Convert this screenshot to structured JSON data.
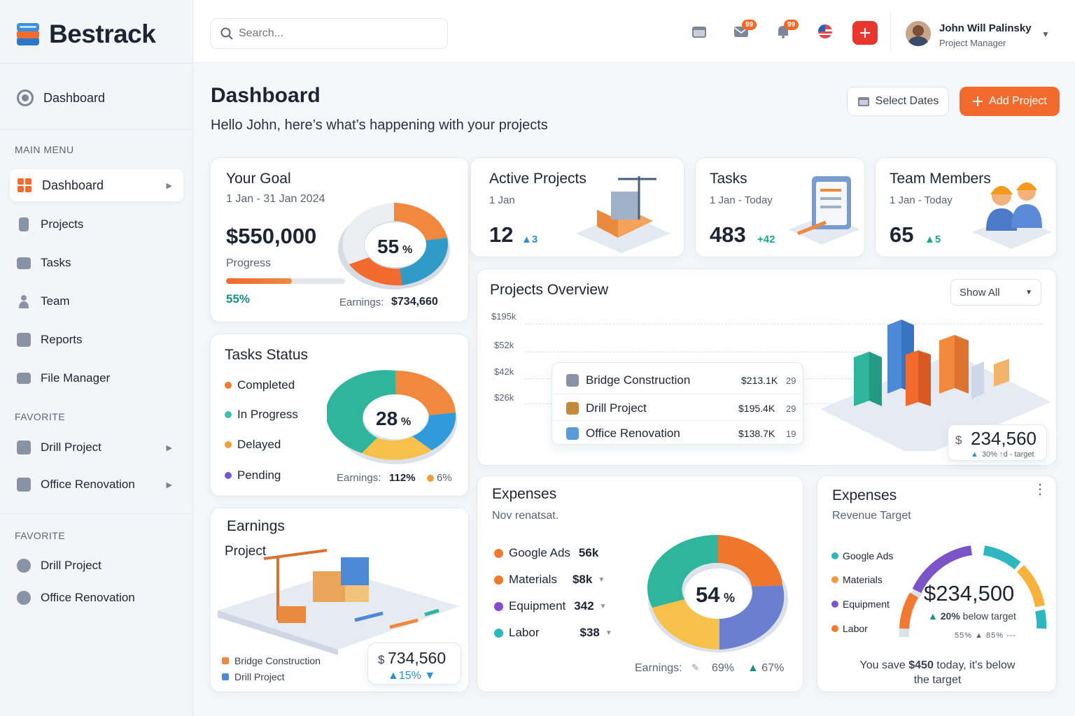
{
  "brand": {
    "name": "Bestrack",
    "accent": "#f26a2e"
  },
  "sidebar": {
    "top_item": "Dashboard",
    "main_menu_label": "MAIN MENU",
    "items": [
      {
        "label": "Dashboard",
        "icon": "grid-icon"
      },
      {
        "label": "Projects",
        "icon": "projects-icon"
      },
      {
        "label": "Tasks",
        "icon": "tasks-icon"
      },
      {
        "label": "Team",
        "icon": "team-icon"
      },
      {
        "label": "Reports",
        "icon": "reports-icon"
      },
      {
        "label": "File Manager",
        "icon": "folder-icon"
      }
    ],
    "favorite_label": "FAVORITE",
    "favorites": [
      {
        "label": "Drill Project"
      },
      {
        "label": "Office Renovation"
      }
    ],
    "favorite_label_2": "FAVORITE",
    "favorites_2": [
      {
        "label": "Drill Project"
      },
      {
        "label": "Office Renovation"
      }
    ]
  },
  "topbar": {
    "search_placeholder": "Search...",
    "mail_badge": "99",
    "bell_badge": "99",
    "user_name": "John Will Palinsky",
    "user_role": "Project Manager"
  },
  "header": {
    "title": "Dashboard",
    "subtitle": "Hello John, here’s what’s happening with your projects",
    "select_dates": "Select Dates",
    "add_project": "Add Project"
  },
  "goal": {
    "title": "Your Goal",
    "range": "1 Jan - 31 Jan 2024",
    "amount": "$550,000",
    "progress_label": "Progress",
    "progress_pct": "55%",
    "progress_value": 0.55,
    "earnings_label": "Earnings:",
    "earnings_value": "$734,660",
    "donut_pct": "55",
    "pct_sign": "%"
  },
  "stats": [
    {
      "title": "Active Projects",
      "range": "1 Jan",
      "value": "12",
      "delta": "3",
      "color": "#2f8fd0"
    },
    {
      "title": "Tasks",
      "range": "1 Jan - Today",
      "value": "483",
      "delta": "+42",
      "color": "#1aa884"
    },
    {
      "title": "Team Members",
      "range": "1 Jan - Today",
      "value": "65",
      "delta": "5",
      "color": "#1aa884"
    }
  ],
  "tasks_status": {
    "title": "Tasks Status",
    "legend": [
      {
        "label": "Completed",
        "color": "#f07a30"
      },
      {
        "label": "In Progress",
        "color": "#3fbfb0"
      },
      {
        "label": "Delayed",
        "color": "#f39a3c"
      },
      {
        "label": "Pending",
        "color": "#7b55c8"
      }
    ],
    "center": "28",
    "pct_sign": "%",
    "earnings_label": "Earnings:",
    "earnings_value": "112%",
    "extra": "6%"
  },
  "overview": {
    "title": "Projects Overview",
    "filter": "Show All",
    "y_ticks": [
      "$195k",
      "$52k",
      "$42k",
      "$26k"
    ],
    "rows": [
      {
        "name": "Bridge Construction",
        "amount": "$213.1K",
        "count": "29"
      },
      {
        "name": "Drill Project",
        "amount": "$195.4K",
        "count": "29"
      },
      {
        "name": "Office Renovation",
        "amount": "$138.7K",
        "count": "19"
      }
    ],
    "total_currency": "$",
    "total": "234,560",
    "total_sub": "30% ↑d - target"
  },
  "earnings": {
    "title": "Earnings",
    "subtitle": "Project",
    "rows": [
      {
        "name": "Bridge Construction"
      },
      {
        "name": "Drill Project"
      }
    ],
    "amount_currency": "$",
    "amount": "734,560",
    "delta": "15%"
  },
  "expenses": {
    "title": "Expenses",
    "subtitle": "Nov renatsat.",
    "rows": [
      {
        "label": "Google Ads",
        "value": "56k",
        "color": "#f07a30"
      },
      {
        "label": "Materials",
        "value": "$8k",
        "color": "#f0762c"
      },
      {
        "label": "Equipment",
        "value": "342",
        "color": "#8a4ad0"
      },
      {
        "label": "Labor",
        "value": "$38",
        "color": "#2fb7c0"
      }
    ],
    "center": "54",
    "pct_sign": "%",
    "earnings_label": "Earnings:",
    "e1": "69%",
    "e2": "67%"
  },
  "expenses2": {
    "title": "Expenses",
    "subtitle": "Revenue Target",
    "legend": [
      {
        "label": "Google Ads",
        "color": "#2fb7c0"
      },
      {
        "label": "Materials",
        "color": "#f39a3c"
      },
      {
        "label": "Equipment",
        "color": "#7b55c8"
      },
      {
        "label": "Labor",
        "color": "#f07a30"
      }
    ],
    "amount": "$234,500",
    "below_pct": "20%",
    "below_text": "below target",
    "ticks": "55%  ▲ 85%  ---",
    "save_prefix": "You save",
    "save_amount": "$450",
    "save_suffix": "today, it's below",
    "save_line2": "the target"
  }
}
